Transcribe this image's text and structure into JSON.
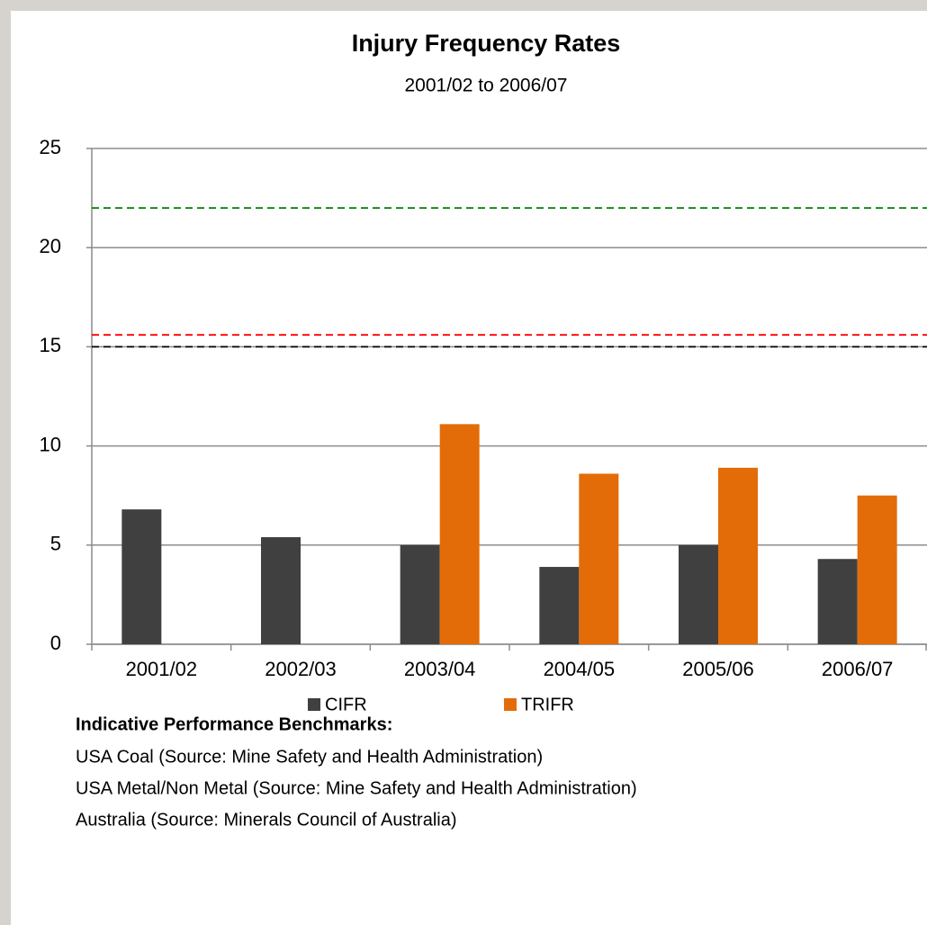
{
  "chart_data": {
    "type": "bar",
    "title": "Injury Frequency Rates",
    "subtitle": "2001/02 to 2006/07",
    "categories": [
      "2001/02",
      "2002/03",
      "2003/04",
      "2004/05",
      "2005/06",
      "2006/07"
    ],
    "series": [
      {
        "name": "CIFR",
        "color": "#404040",
        "values": [
          6.8,
          5.4,
          5.0,
          3.9,
          5.0,
          4.3
        ]
      },
      {
        "name": "TRIFR",
        "color": "#e36c09",
        "values": [
          null,
          null,
          11.1,
          8.6,
          8.9,
          7.5
        ]
      }
    ],
    "ylim": [
      0,
      25
    ],
    "yticks": [
      0,
      5,
      10,
      15,
      20,
      25
    ],
    "grid": true,
    "legend": "bottom",
    "benchmarks_title": "Indicative Performance Benchmarks:",
    "reference_lines": [
      {
        "value": 22,
        "color": "#008000",
        "label": "USA Coal (Source: Mine Safety and Health Administration)"
      },
      {
        "value": 15.6,
        "color": "#ff0000",
        "label": "USA Metal/Non Metal (Source: Mine Safety and Health Administration)"
      },
      {
        "value": 15,
        "color": "#000000",
        "label": "Australia (Source: Minerals Council of Australia)"
      }
    ]
  }
}
